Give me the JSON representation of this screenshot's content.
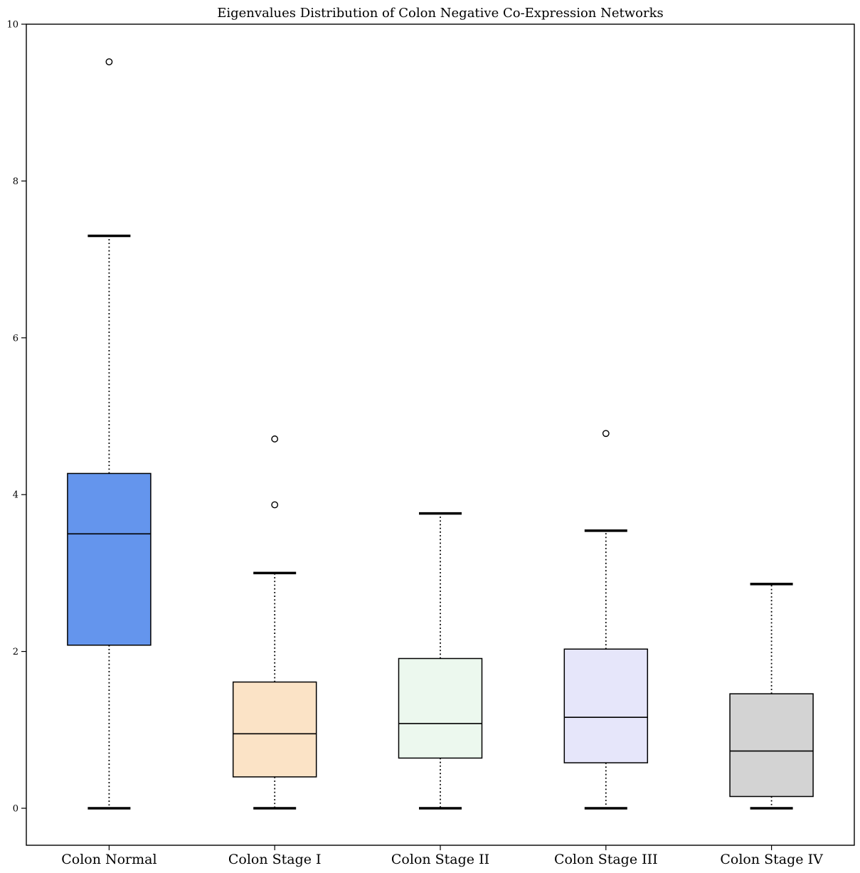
{
  "title": "Eigenvalues Distribution of Colon Negative Co-Expression Networks",
  "chart_data": {
    "type": "box",
    "title": "Eigenvalues Distribution of Colon Negative Co-Expression Networks",
    "xlabel": "",
    "ylabel": "",
    "categories": [
      "Colon Normal",
      "Colon Stage I",
      "Colon Stage II",
      "Colon Stage III",
      "Colon Stage IV"
    ],
    "yticks": [
      0,
      2,
      4,
      6,
      8,
      10
    ],
    "ylim": [
      -0.47,
      10
    ],
    "grid": false,
    "legend": null,
    "box_edge_color": "#000000",
    "whisker_style": "dotted",
    "series": [
      {
        "name": "Colon Normal",
        "whisker_low": 0.0,
        "q1": 2.08,
        "median": 3.5,
        "q3": 4.27,
        "whisker_high": 7.3,
        "outliers": [
          9.52
        ],
        "fill": "#6495ED"
      },
      {
        "name": "Colon Stage I",
        "whisker_low": 0.0,
        "q1": 0.4,
        "median": 0.95,
        "q3": 1.61,
        "whisker_high": 3.0,
        "outliers": [
          4.71,
          3.87
        ],
        "fill": "#FBE3C6"
      },
      {
        "name": "Colon Stage II",
        "whisker_low": 0.0,
        "q1": 0.64,
        "median": 1.08,
        "q3": 1.91,
        "whisker_high": 3.76,
        "outliers": [],
        "fill": "#ECF8EE"
      },
      {
        "name": "Colon Stage III",
        "whisker_low": 0.0,
        "q1": 0.58,
        "median": 1.16,
        "q3": 2.03,
        "whisker_high": 3.54,
        "outliers": [
          4.78
        ],
        "fill": "#E6E6FA"
      },
      {
        "name": "Colon Stage IV",
        "whisker_low": 0.0,
        "q1": 0.15,
        "median": 0.73,
        "q3": 1.46,
        "whisker_high": 2.86,
        "outliers": [],
        "fill": "#D3D3D3"
      }
    ]
  }
}
